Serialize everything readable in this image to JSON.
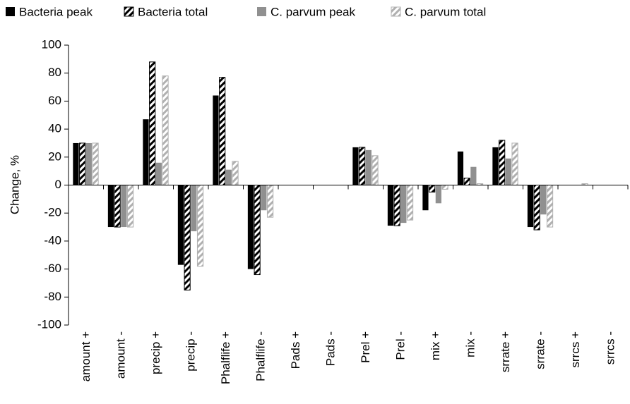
{
  "chart_data": {
    "type": "bar",
    "y_label": "Change, %",
    "categories": [
      "amount +",
      "amount -",
      "precip +",
      "precip -",
      "Phalflife +",
      "Phalflife -",
      "Pads +",
      "Pads -",
      "Prel +",
      "Prel -",
      "mix +",
      "mix -",
      "srrate +",
      "srrate -",
      "srrcs +",
      "srrcs -"
    ],
    "series": [
      {
        "name": "Bacteria peak",
        "color": "#000000",
        "hatch": false,
        "values": [
          30,
          -30,
          47,
          -57,
          64,
          -60,
          0,
          0,
          27,
          -29,
          -18,
          24,
          27,
          -30,
          0,
          0
        ]
      },
      {
        "name": "Bacteria total",
        "color": "#000000",
        "hatch": true,
        "values": [
          30,
          -30,
          88,
          -75,
          77,
          -64,
          0,
          0,
          27,
          -29,
          -5,
          5,
          32,
          -32,
          0,
          0
        ]
      },
      {
        "name": "C. parvum peak",
        "color": "#909090",
        "hatch": false,
        "values": [
          30,
          -30,
          16,
          -33,
          11,
          -18,
          0,
          0,
          25,
          -27,
          -13,
          13,
          19,
          -21,
          0,
          0
        ]
      },
      {
        "name": "C. parvum total",
        "color": "#b0b0b0",
        "hatch": true,
        "values": [
          30,
          -30,
          78,
          -58,
          17,
          -23,
          0,
          0,
          21,
          -25,
          -3,
          1,
          30,
          -30,
          1,
          0
        ]
      }
    ],
    "ylim": [
      -100,
      100
    ],
    "yticks": [
      -100,
      -80,
      -60,
      -40,
      -20,
      0,
      20,
      40,
      60,
      80,
      100
    ],
    "legend": "top",
    "grid": false
  }
}
